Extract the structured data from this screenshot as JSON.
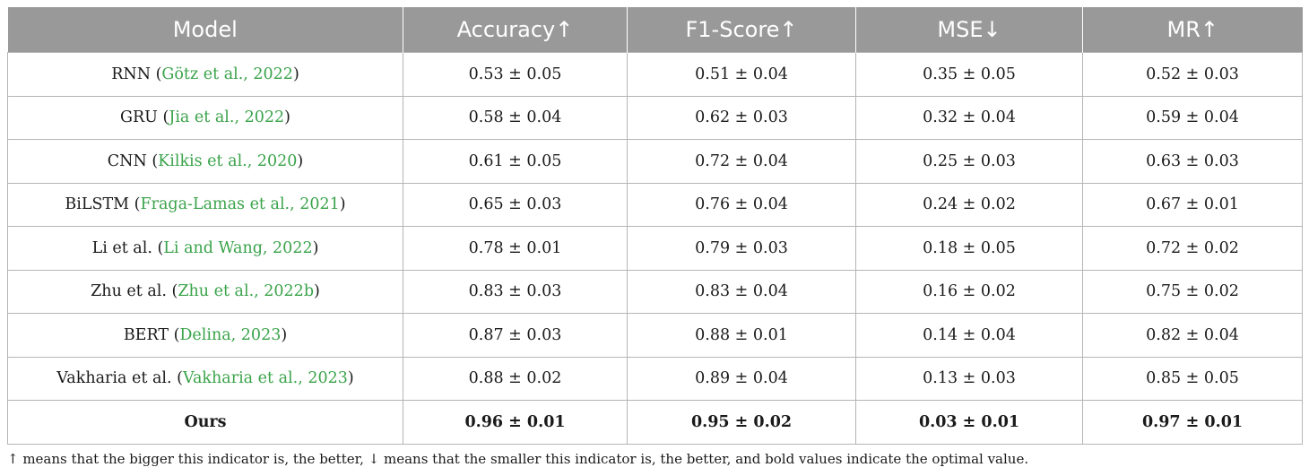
{
  "table": {
    "headers": [
      "Model",
      "Accuracy↑",
      "F1-Score↑",
      "MSE↓",
      "MR↑"
    ],
    "rows": [
      {
        "model": "RNN",
        "cite": "Götz et al., 2022",
        "accuracy": "0.53 ± 0.05",
        "f1": "0.51 ± 0.04",
        "mse": "0.35 ± 0.05",
        "mr": "0.52 ± 0.03"
      },
      {
        "model": "GRU",
        "cite": "Jia et al., 2022",
        "accuracy": "0.58 ± 0.04",
        "f1": "0.62 ± 0.03",
        "mse": "0.32 ± 0.04",
        "mr": "0.59 ± 0.04"
      },
      {
        "model": "CNN",
        "cite": "Kilkis et al., 2020",
        "accuracy": "0.61 ± 0.05",
        "f1": "0.72 ± 0.04",
        "mse": "0.25 ± 0.03",
        "mr": "0.63 ± 0.03"
      },
      {
        "model": "BiLSTM",
        "cite": "Fraga-Lamas et al., 2021",
        "accuracy": "0.65 ± 0.03",
        "f1": "0.76 ± 0.04",
        "mse": "0.24 ± 0.02",
        "mr": "0.67 ± 0.01"
      },
      {
        "model": "Li et al.",
        "cite": "Li and Wang, 2022",
        "accuracy": "0.78 ± 0.01",
        "f1": "0.79 ± 0.03",
        "mse": "0.18 ± 0.05",
        "mr": "0.72 ± 0.02"
      },
      {
        "model": "Zhu et al.",
        "cite": "Zhu et al., 2022b",
        "accuracy": "0.83 ± 0.03",
        "f1": "0.83 ± 0.04",
        "mse": "0.16 ± 0.02",
        "mr": "0.75 ± 0.02"
      },
      {
        "model": "BERT",
        "cite": "Delina, 2023",
        "accuracy": "0.87 ± 0.03",
        "f1": "0.88 ± 0.01",
        "mse": "0.14 ± 0.04",
        "mr": "0.82 ± 0.04"
      },
      {
        "model": "Vakharia et al.",
        "cite": "Vakharia et al., 2023",
        "accuracy": "0.88 ± 0.02",
        "f1": "0.89 ± 0.04",
        "mse": "0.13 ± 0.03",
        "mr": "0.85 ± 0.05"
      },
      {
        "model": "Ours",
        "cite": "",
        "accuracy": "0.96 ± 0.01",
        "f1": "0.95 ± 0.02",
        "mse": "0.03 ± 0.01",
        "mr": "0.97 ± 0.01",
        "best": true
      }
    ]
  },
  "footnote": "↑ means that the bigger this indicator is, the better, ↓ means that the smaller this indicator is, the better, and bold values indicate the optimal value.",
  "colors": {
    "header_bg": "#999999",
    "header_text": "#ffffff",
    "citation": "#3aa34a",
    "border": "#b5b5b5"
  }
}
